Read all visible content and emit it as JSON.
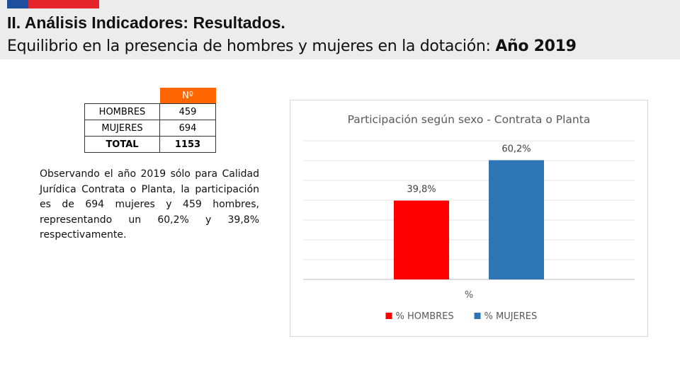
{
  "header": {
    "title": "II. Análisis Indicadores: Resultados.",
    "subtitle": "Equilibrio en la presencia de hombres y mujeres en la dotación:",
    "subtitle_year": "Año 2019",
    "flag_colors": [
      "#1f4e9c",
      "#e5242b"
    ]
  },
  "table": {
    "header": "Nº",
    "rows": [
      {
        "label": "HOMBRES",
        "value": "459"
      },
      {
        "label": "MUJERES",
        "value": "694"
      },
      {
        "label": "TOTAL",
        "value": "1153"
      }
    ],
    "header_color": "#ff6600"
  },
  "paragraph": "Observando el año 2019 sólo para Calidad Jurídica Contrata o Planta, la participación es de 694 mujeres y 459 hombres, representando un 60,2% y 39,8% respectivamente.",
  "chart_data": {
    "type": "bar",
    "title": "Participación según sexo - Contrata o Planta",
    "xlabel": "%",
    "ylabel": "",
    "categories": [
      "%"
    ],
    "series": [
      {
        "name": "% HOMBRES",
        "values": [
          39.8
        ],
        "label": "39,8%",
        "color": "#ff0000"
      },
      {
        "name": "% MUJERES",
        "values": [
          60.2
        ],
        "label": "60,2%",
        "color": "#2e75b6"
      }
    ],
    "ylim": [
      0,
      70
    ],
    "grid": true,
    "legend": "bottom"
  }
}
